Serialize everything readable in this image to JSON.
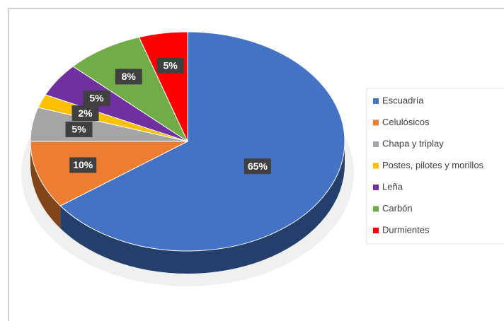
{
  "chart_data": {
    "type": "pie",
    "categories": [
      "Escuadría",
      "Celulósicos",
      "Chapa y triplay",
      "Postes, pilotes y morillos",
      "Leña",
      "Carbón",
      "Durmientes"
    ],
    "values": [
      65,
      10,
      5,
      2,
      5,
      8,
      5
    ],
    "value_labels": [
      "65%",
      "10%",
      "5%",
      "2%",
      "5%",
      "8%",
      "5%"
    ],
    "colors": [
      "#4472c4",
      "#ed7d31",
      "#a5a5a5",
      "#ffc000",
      "#7030a0",
      "#70ad47",
      "#ff0000"
    ],
    "legend": "right"
  }
}
